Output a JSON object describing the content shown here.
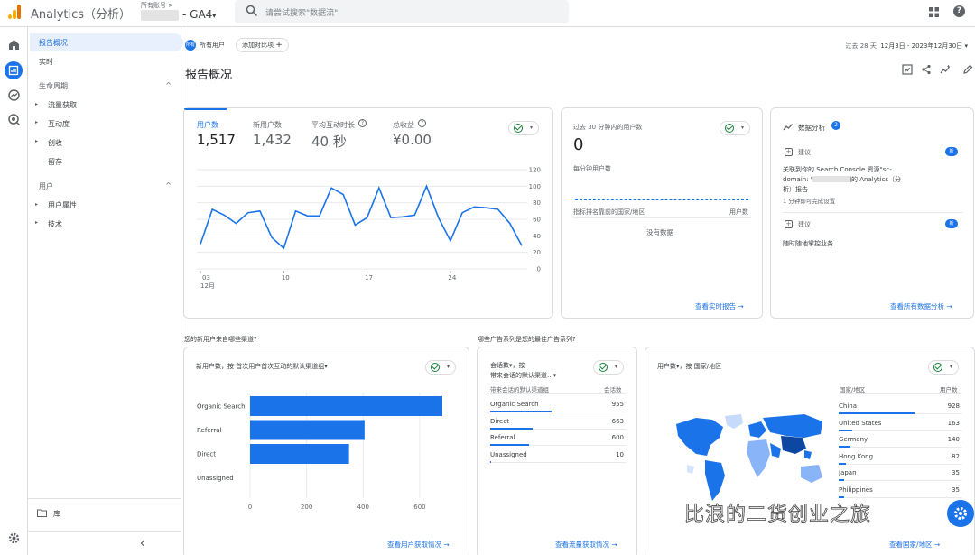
{
  "header": {
    "app_title": "Analytics（分析）",
    "account_small": "所有账号 >",
    "property": "- GA4",
    "property_chevron": "▾",
    "search_placeholder": "请尝试搜索\"数据流\""
  },
  "nav": {
    "items": [
      {
        "label": "报告概况"
      },
      {
        "label": "实时"
      },
      {
        "label": "生命周期"
      },
      {
        "label": "流量获取"
      },
      {
        "label": "互动度"
      },
      {
        "label": "创收"
      },
      {
        "label": "留存"
      },
      {
        "label": "用户"
      },
      {
        "label": "用户属性"
      },
      {
        "label": "技术"
      }
    ],
    "library": "库",
    "collapse": "‹",
    "caret_up": "^",
    "tri": "▸"
  },
  "filters": {
    "segment_icon_text": "所有",
    "segment": "所有用户",
    "add_comparison": "添加对比项",
    "plus": "+",
    "date_prefix": "过去 28 天",
    "date_range": "12月3日 - 2023年12月30日",
    "date_chevron": "▾"
  },
  "page": {
    "title": "报告概况"
  },
  "ctl_chevron": "▾",
  "overview": {
    "metrics": [
      {
        "label": "用户数",
        "value": "1,517",
        "active": true
      },
      {
        "label": "新用户数",
        "value": "1,432",
        "active": false
      },
      {
        "label": "平均互动时长",
        "value": "40 秒",
        "active": false
      },
      {
        "label": "总收益",
        "value": "¥0.00",
        "active": false
      }
    ],
    "help": "?"
  },
  "chart_data": {
    "type": "line",
    "x_tick_labels": [
      "03",
      "10",
      "17",
      "24"
    ],
    "x_month_label": "12月",
    "y_tick_labels": [
      "120",
      "100",
      "80",
      "60",
      "40",
      "20",
      "0"
    ],
    "ylim": [
      0,
      120
    ],
    "x": [
      "12-03",
      "12-04",
      "12-05",
      "12-06",
      "12-07",
      "12-08",
      "12-09",
      "12-10",
      "12-11",
      "12-12",
      "12-13",
      "12-14",
      "12-15",
      "12-16",
      "12-17",
      "12-18",
      "12-19",
      "12-20",
      "12-21",
      "12-22",
      "12-23",
      "12-24",
      "12-25",
      "12-26",
      "12-27",
      "12-28",
      "12-29",
      "12-30"
    ],
    "series": [
      {
        "values": [
          30,
          72,
          65,
          55,
          68,
          70,
          38,
          25,
          70,
          64,
          64,
          98,
          90,
          53,
          62,
          98,
          62,
          63,
          65,
          100,
          62,
          34,
          68,
          75,
          74,
          72,
          55,
          28
        ]
      }
    ]
  },
  "realtime": {
    "title": "过去 30 分钟内的用户数",
    "value": "0",
    "per_minute": "每分钟用户数",
    "col_left": "指标排名靠前的国家/地区",
    "col_right": "用户数",
    "no_data": "没有数据",
    "link": "查看实时报告",
    "arrow": "→"
  },
  "insights": {
    "title": "数据分析",
    "count": "2",
    "items": [
      {
        "tag": "建议",
        "badge": "新",
        "text1": "关联到你的 Search Console 资源\"sc-",
        "text2": "domain:            \"以获取更详细的 Analytics（分",
        "text3": "析）报告",
        "note": "1 分钟即可完成设置"
      },
      {
        "tag": "建议",
        "badge": "新",
        "text1": "随时随地掌控业务"
      }
    ],
    "link": "查看所有数据分析",
    "arrow": "→"
  },
  "section_q1": "您的新用户来自哪些渠道?",
  "section_q2": "哪些广告系列是您的最佳广告系列?",
  "new_users_chart": {
    "title": "新用户数，按 首次用户首次互动的默认渠道组",
    "title_chevron": "▾",
    "link": "查看用户获取情况",
    "arrow": "→",
    "chart_data": {
      "type": "bar",
      "orientation": "horizontal",
      "categories": [
        "Organic Search",
        "Referral",
        "Direct",
        "Unassigned"
      ],
      "values": [
        680,
        405,
        350,
        0
      ],
      "x_tick_labels": [
        "0",
        "200",
        "400",
        "600"
      ],
      "xlim": [
        0,
        680
      ]
    }
  },
  "sessions_table": {
    "title1": "会话数",
    "title1_chevron": "▾",
    "title1_suffix": "，按",
    "title2": "带来会话的默认渠道...",
    "title2_chevron": "▾",
    "col_left": "带来会话的默认渠道组",
    "col_right": "会话数",
    "rows": [
      {
        "name": "Organic Search",
        "value": "955",
        "share": 1.0
      },
      {
        "name": "Direct",
        "value": "663",
        "share": 0.69
      },
      {
        "name": "Referral",
        "value": "600",
        "share": 0.63
      },
      {
        "name": "Unassigned",
        "value": "10",
        "share": 0.01
      }
    ],
    "link": "查看流量获取情况",
    "arrow": "→"
  },
  "country": {
    "title": "用户数",
    "title_chevron": "▾",
    "title_suffix": "，按 国家/地区",
    "col_left": "国家/地区",
    "col_right": "用户数",
    "rows": [
      {
        "name": "China",
        "value": "928",
        "share": 1.0
      },
      {
        "name": "United States",
        "value": "163",
        "share": 0.18
      },
      {
        "name": "Germany",
        "value": "140",
        "share": 0.15
      },
      {
        "name": "Hong Kong",
        "value": "82",
        "share": 0.09
      },
      {
        "name": "Japan",
        "value": "35",
        "share": 0.04
      },
      {
        "name": "Philippines",
        "value": "35",
        "share": 0.04
      }
    ],
    "link": "查看国家/地区",
    "arrow": "→"
  },
  "watermark": "比浪的二货创业之旅"
}
